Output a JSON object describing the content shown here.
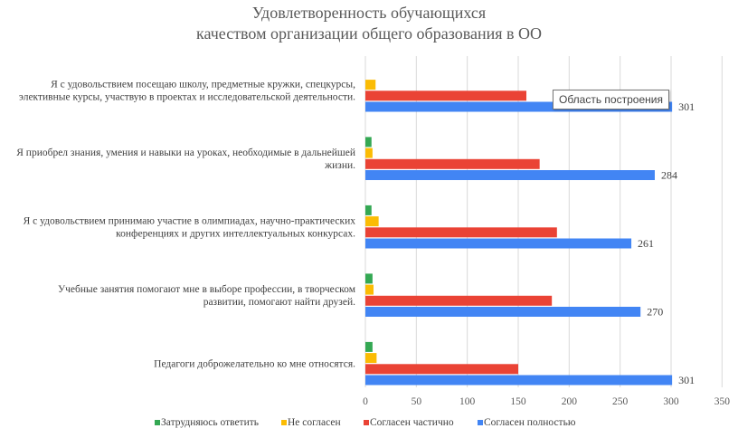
{
  "chart_data": {
    "type": "bar",
    "orientation": "horizontal",
    "title": [
      "Удовлетворенность обучающихся",
      "качеством организации общего образования в ОО"
    ],
    "categories": [
      [
        "Я с удовольствием посещаю школу, предметные кружки, спецкурсы,",
        "элективные курсы, участвую в проектах и исследовательской деятельности."
      ],
      [
        "Я приобрел знания, умения и навыки на уроках, необходимые в дальнейшей",
        "жизни."
      ],
      [
        "Я с удовольствием принимаю участие в олимпиадах, научно-практических",
        "конференциях и других интеллектуальных конкурсах."
      ],
      [
        "Учебные занятия помогают мне  в выборе профессии, в творческом",
        "развитии, помогают найти друзей."
      ],
      [
        "Педагоги доброжелательно ко мне относятся."
      ]
    ],
    "series": [
      {
        "name": "Затрудняюсь ответить",
        "color": "#34a853",
        "values": [
          0,
          6,
          6,
          7,
          7
        ]
      },
      {
        "name": "Не согласен",
        "color": "#fbbc04",
        "values": [
          10,
          7,
          13,
          8,
          11
        ]
      },
      {
        "name": "Согласен частично",
        "color": "#ea4335",
        "values": [
          158,
          171,
          188,
          183,
          150
        ]
      },
      {
        "name": "Согласен полностью",
        "color": "#4285f4",
        "values": [
          301,
          284,
          261,
          270,
          301
        ]
      }
    ],
    "data_labels_series": "Согласен полностью",
    "xlim": [
      0,
      350
    ],
    "xticks": [
      0,
      50,
      100,
      150,
      200,
      250,
      300,
      350
    ],
    "grid": true,
    "legend_position": "bottom"
  },
  "tooltip": {
    "text": "Область построения"
  }
}
